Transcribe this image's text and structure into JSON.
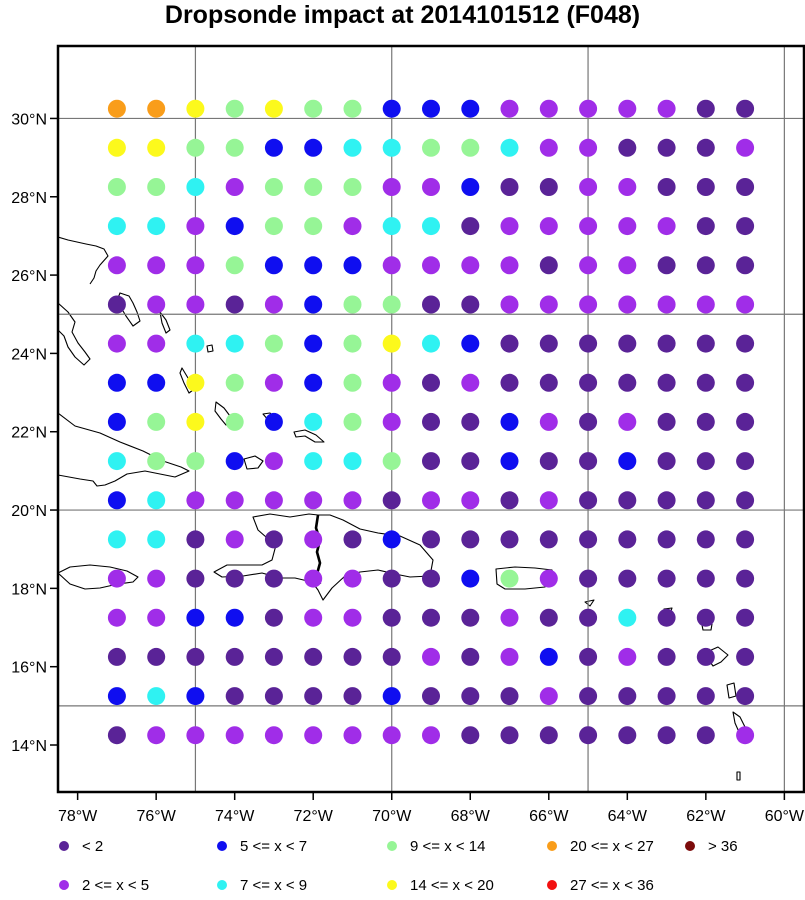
{
  "chart_data": {
    "type": "scatter",
    "title": "Dropsonde impact at 2014101512 (F048)",
    "xlabel": "",
    "ylabel": "",
    "xlim": [
      -78.5,
      -59.5
    ],
    "ylim": [
      12.8,
      31.85
    ],
    "x_ticks": [
      {
        "value": -78,
        "label": "78°W"
      },
      {
        "value": -76,
        "label": "76°W"
      },
      {
        "value": -74,
        "label": "74°W"
      },
      {
        "value": -72,
        "label": "72°W"
      },
      {
        "value": -70,
        "label": "70°W"
      },
      {
        "value": -68,
        "label": "68°W"
      },
      {
        "value": -66,
        "label": "66°W"
      },
      {
        "value": -64,
        "label": "64°W"
      },
      {
        "value": -62,
        "label": "62°W"
      },
      {
        "value": -60,
        "label": "60°W"
      }
    ],
    "y_ticks": [
      {
        "value": 14,
        "label": "14°N"
      },
      {
        "value": 16,
        "label": "16°N"
      },
      {
        "value": 18,
        "label": "18°N"
      },
      {
        "value": 20,
        "label": "20°N"
      },
      {
        "value": 22,
        "label": "22°N"
      },
      {
        "value": 24,
        "label": "24°N"
      },
      {
        "value": 26,
        "label": "26°N"
      },
      {
        "value": 28,
        "label": "28°N"
      },
      {
        "value": 30,
        "label": "30°N"
      }
    ],
    "grid_lon": [
      -75,
      -70,
      -65,
      -60
    ],
    "grid_lat": [
      15,
      20,
      25,
      30
    ],
    "lons": [
      -77,
      -76,
      -75,
      -74,
      -73,
      -72,
      -71,
      -70,
      -69,
      -68,
      -67,
      -66,
      -65,
      -64,
      -63,
      -62,
      -61
    ],
    "lats": [
      30.25,
      29.25,
      28.25,
      27.25,
      26.25,
      25.25,
      24.25,
      23.25,
      22.25,
      21.25,
      20.25,
      19.25,
      18.25,
      17.25,
      16.25,
      15.25,
      14.25
    ],
    "grid_categories": [
      "8 8 7 6 7 6 6 4 4 4 2 2 2 2 2 1 1",
      "7 7 6 6 4 4 5 5 6 6 5 2 2 1 1 1 2",
      "6 6 5 2 6 6 6 2 2 4 1 1 2 2 1 1 1",
      "5 5 2 4 6 6 2 5 5 1 2 2 2 2 2 1 1",
      "2 2 2 6 4 4 4 2 2 2 2 1 2 2 1 1 1",
      "1 2 2 1 2 4 6 6 1 1 2 2 2 2 2 2 2",
      "2 2 5 5 6 4 6 7 5 4 1 1 1 1 1 1 1",
      "4 4 7 6 2 4 6 2 1 2 1 1 1 1 1 1 1",
      "4 6 7 6 4 5 6 2 1 1 4 2 1 2 1 1 1",
      "5 6 6 4 2 5 5 6 1 1 4 1 1 4 1 1 1",
      "4 5 2 2 2 2 2 1 2 2 1 2 1 1 1 1 1",
      "5 5 1 2 1 2 1 4 1 1 1 1 1 1 1 1 1",
      "2 2 1 1 1 2 2 1 1 4 6 2 1 1 1 1 1",
      "2 2 4 4 1 2 2 1 1 1 2 1 1 5 1 1 1",
      "1 1 1 1 1 1 1 1 2 1 2 4 1 2 1 1 1",
      "4 5 4 1 1 1 1 4 1 1 1 2 1 1 1 1 1",
      "1 2 2 2 2 2 2 2 2 1 1 1 1 1 1 1 2"
    ],
    "legend": [
      {
        "category": 1,
        "label": "<  2",
        "color": "#5a2397"
      },
      {
        "category": 2,
        "label": "2 <= x <  5",
        "color": "#a02de8"
      },
      {
        "category": 4,
        "label": "5 <= x <  7",
        "color": "#0f0ef0"
      },
      {
        "category": 5,
        "label": "7 <= x <  9",
        "color": "#2ff2f2"
      },
      {
        "category": 6,
        "label": "9 <= x < 14",
        "color": "#96f596"
      },
      {
        "category": 7,
        "label": "14 <= x < 20",
        "color": "#fcf91c"
      },
      {
        "category": 8,
        "label": "20 <= x < 27",
        "color": "#f99d1a"
      },
      {
        "category": 9,
        "label": "27 <= x < 36",
        "color": "#f21010"
      },
      {
        "category": 10,
        "label": "> 36",
        "color": "#7c0b0b"
      }
    ],
    "legend_placement": "bottom",
    "grid": true
  }
}
